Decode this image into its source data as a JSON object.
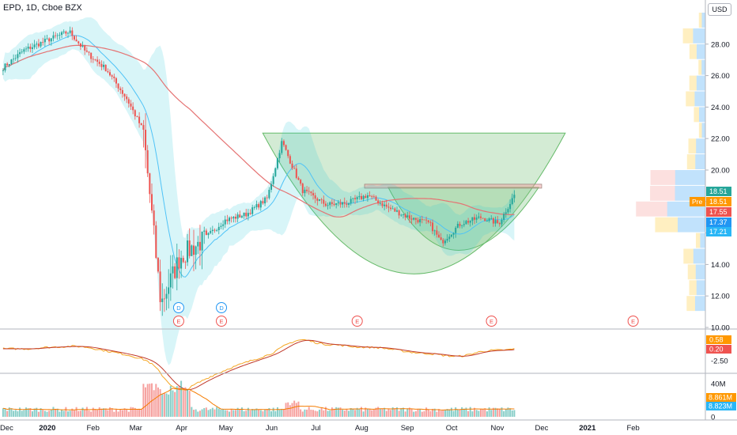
{
  "header": {
    "symbol_line": "EPD, 1D, Cboe BZX",
    "currency": "USD"
  },
  "chart_data": {
    "type": "candlestick",
    "symbol": "EPD",
    "interval": "1D",
    "exchange": "Cboe BZX",
    "x_axis_labels": [
      "Dec",
      "2020",
      "Feb",
      "Mar",
      "Apr",
      "May",
      "Jun",
      "Jul",
      "Aug",
      "Sep",
      "Oct",
      "Nov",
      "Dec",
      "2021",
      "Feb"
    ],
    "price_axis": {
      "ticks": [
        "28.00",
        "26.00",
        "24.00",
        "22.00",
        "20.00",
        "18.00",
        "16.00",
        "14.00",
        "12.00",
        "10.00"
      ],
      "ylim": [
        10,
        30
      ]
    },
    "oscillator_axis": {
      "ticks": [
        "-2.50"
      ],
      "value_badges": [
        "0.58",
        "0.20"
      ]
    },
    "volume_axis": {
      "ticks": [
        "40M",
        "0"
      ],
      "value_badges": [
        "8.861M",
        "8.823M"
      ]
    },
    "price_badges": [
      {
        "label": "",
        "value": "18.51",
        "color": "#26a69a"
      },
      {
        "label": "Pre",
        "value": "18.51",
        "color": "#ff9800"
      },
      {
        "label": "",
        "value": "17.55",
        "color": "#ef5350"
      },
      {
        "label": "",
        "value": "17.37",
        "color": "#2196f3"
      },
      {
        "label": "",
        "value": "17.21",
        "color": "#29b6f6"
      }
    ],
    "events": [
      {
        "date": "2020-03-30",
        "marks": [
          "D",
          "E"
        ]
      },
      {
        "date": "2020-04-28",
        "marks": [
          "D",
          "E"
        ]
      },
      {
        "date": "2020-07-29",
        "marks": [
          "E"
        ]
      },
      {
        "date": "2020-10-28",
        "marks": [
          "E"
        ]
      },
      {
        "date": "2021-02-01",
        "marks": [
          "E"
        ]
      }
    ],
    "series": [
      {
        "type": "ohlc_daily_approx",
        "values": [
          {
            "date": "2019-12-02",
            "close": 26.5
          },
          {
            "date": "2019-12-16",
            "close": 27.6
          },
          {
            "date": "2020-01-02",
            "close": 28.3
          },
          {
            "date": "2020-01-16",
            "close": 28.8
          },
          {
            "date": "2020-01-27",
            "close": 27.5
          },
          {
            "date": "2020-02-10",
            "close": 26.4
          },
          {
            "date": "2020-02-24",
            "close": 24.5
          },
          {
            "date": "2020-03-06",
            "close": 22.5
          },
          {
            "date": "2020-03-18",
            "close": 11.5
          },
          {
            "date": "2020-03-31",
            "close": 14.5
          },
          {
            "date": "2020-04-15",
            "close": 15.5
          },
          {
            "date": "2020-04-30",
            "close": 16.8
          },
          {
            "date": "2020-05-15",
            "close": 17.2
          },
          {
            "date": "2020-05-29",
            "close": 18.2
          },
          {
            "date": "2020-06-08",
            "close": 21.8
          },
          {
            "date": "2020-06-22",
            "close": 18.7
          },
          {
            "date": "2020-07-08",
            "close": 17.8
          },
          {
            "date": "2020-07-22",
            "close": 17.9
          },
          {
            "date": "2020-08-05",
            "close": 18.4
          },
          {
            "date": "2020-08-19",
            "close": 17.6
          },
          {
            "date": "2020-09-02",
            "close": 17.0
          },
          {
            "date": "2020-09-16",
            "close": 16.6
          },
          {
            "date": "2020-09-24",
            "close": 15.4
          },
          {
            "date": "2020-10-07",
            "close": 16.6
          },
          {
            "date": "2020-10-21",
            "close": 17.0
          },
          {
            "date": "2020-11-02",
            "close": 16.6
          },
          {
            "date": "2020-11-13",
            "close": 18.5
          }
        ]
      }
    ],
    "annotations": [
      "cup-and-handle pattern drawn with green filled parabolas",
      "horizontal resistance rectangle near 19.0",
      "volume profile histogram on right"
    ]
  }
}
